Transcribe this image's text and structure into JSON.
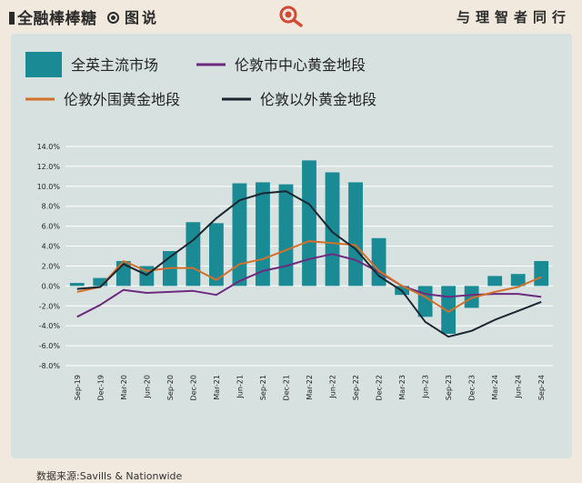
{
  "header": {
    "brand": "全融棒棒糖",
    "section": "图说",
    "slogan": "与理智者同行"
  },
  "icons": {
    "search": "search-icon",
    "target": "target-icon"
  },
  "colors": {
    "background": "#f1e9dd",
    "panel": "#d7e2e0",
    "bar": "#1a8a94",
    "central": "#6d2a7e",
    "surround": "#d4702a",
    "outside": "#1c2630",
    "accent": "#d24a32"
  },
  "source": "数据来源:Savills & Nationwide",
  "chart_data": {
    "type": "bar",
    "categories": [
      "Sep-19",
      "Dec-19",
      "Mar-20",
      "Jun-20",
      "Sep-20",
      "Dec-20",
      "Mar-21",
      "Jun-21",
      "Sep-21",
      "Dec-21",
      "Mar-22",
      "Jun-22",
      "Sep-22",
      "Dec-22",
      "Mar-23",
      "Jun-23",
      "Sep-23",
      "Dec-23",
      "Mar-24",
      "Jun-24",
      "Sep-24"
    ],
    "ylim": [
      -8,
      14
    ],
    "yticks": [
      -8,
      -6,
      -4,
      -2,
      0,
      2,
      4,
      6,
      8,
      10,
      12,
      14
    ],
    "ytick_labels": [
      "-8.0%",
      "-6.0%",
      "-4.0%",
      "-2.0%",
      "0.0%",
      "2.0%",
      "4.0%",
      "6.0%",
      "8.0%",
      "10.0%",
      "12.0%",
      "14.0%"
    ],
    "grid": true,
    "legend_position": "top",
    "series": [
      {
        "name": "全英主流市场",
        "type": "bar",
        "values": [
          0.3,
          0.8,
          2.5,
          2.0,
          3.5,
          6.4,
          6.3,
          10.3,
          10.4,
          10.2,
          12.6,
          11.4,
          10.4,
          4.8,
          -0.9,
          -3.1,
          -4.8,
          -2.2,
          1.0,
          1.2,
          2.5
        ]
      },
      {
        "name": "伦敦市中心黄金地段",
        "type": "line",
        "values": [
          -3.1,
          -1.9,
          -0.4,
          -0.7,
          -0.6,
          -0.5,
          -0.9,
          0.5,
          1.5,
          2.0,
          2.7,
          3.2,
          2.6,
          1.4,
          0.0,
          -0.8,
          -1.1,
          -0.9,
          -0.8,
          -0.8,
          -1.1
        ]
      },
      {
        "name": "伦敦外围黄金地段",
        "type": "line",
        "values": [
          -0.6,
          -0.1,
          2.5,
          1.5,
          1.8,
          1.8,
          0.6,
          2.2,
          2.7,
          3.6,
          4.5,
          4.3,
          4.1,
          1.5,
          0.0,
          -1.1,
          -2.6,
          -1.2,
          -0.6,
          -0.1,
          0.9
        ]
      },
      {
        "name": "伦敦以外黄金地段",
        "type": "line",
        "values": [
          -0.3,
          -0.1,
          2.2,
          1.1,
          2.9,
          4.6,
          6.8,
          8.6,
          9.3,
          9.5,
          8.2,
          5.4,
          3.7,
          1.0,
          -0.5,
          -3.6,
          -5.1,
          -4.5,
          -3.4,
          -2.5,
          -1.6
        ]
      }
    ]
  }
}
